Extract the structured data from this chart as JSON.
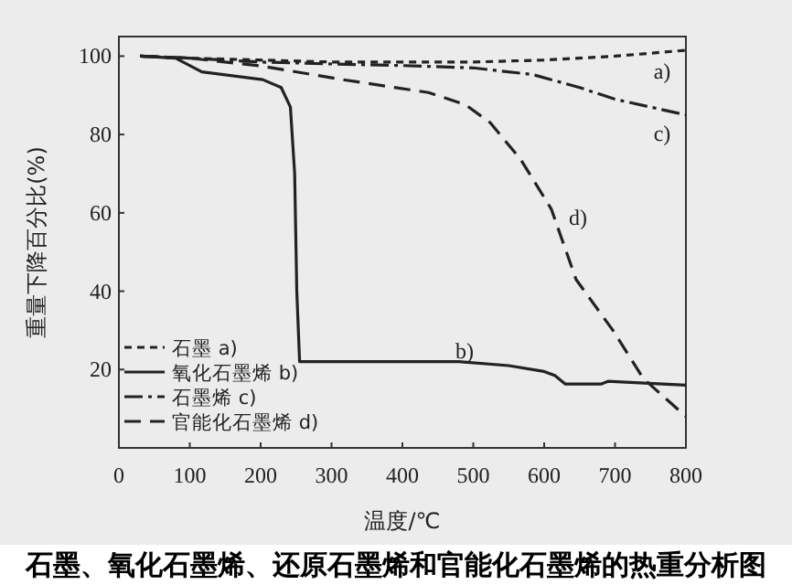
{
  "chart_data": {
    "type": "line",
    "title": "石墨、氧化石墨烯、还原石墨烯和官能化石墨烯的热重分析图",
    "xlabel": "温度/℃",
    "ylabel": "重量下降百分比(%)",
    "xlim": [
      0,
      800
    ],
    "ylim": [
      0,
      105
    ],
    "xticks": [
      0,
      100,
      200,
      300,
      400,
      500,
      600,
      700,
      800
    ],
    "yticks": [
      20,
      40,
      60,
      80,
      100
    ],
    "legend": "bottom left",
    "series": [
      {
        "name": "石墨 a)",
        "color": "#222222",
        "line_style": "dashed",
        "x": [
          30,
          100,
          200,
          300,
          400,
          500,
          600,
          700,
          800
        ],
        "values": [
          100,
          99.5,
          99,
          98.5,
          98.5,
          98.5,
          99,
          100,
          101.5
        ]
      },
      {
        "name": "氧化石墨烯 b)",
        "color": "#222222",
        "line_style": "solid",
        "x": [
          30,
          80,
          117,
          203,
          229,
          242,
          248,
          251,
          255,
          300,
          400,
          480,
          550,
          600,
          615,
          630,
          680,
          690,
          800
        ],
        "values": [
          100,
          99.5,
          96,
          94,
          92,
          87,
          70,
          40,
          22,
          22,
          22,
          22,
          21,
          19.5,
          18.5,
          16.3,
          16.3,
          17,
          16
        ]
      },
      {
        "name": "石墨烯 c)",
        "color": "#222222",
        "line_style": "dashdot",
        "x": [
          30,
          100,
          200,
          300,
          400,
          500,
          584,
          650,
          700,
          750,
          800
        ],
        "values": [
          100,
          99.5,
          98.5,
          98,
          97.6,
          97,
          95.3,
          92,
          89,
          87,
          85
        ]
      },
      {
        "name": "官能化石墨烯 d)",
        "color": "#222222",
        "line_style": "longdash",
        "x": [
          30,
          100,
          200,
          316,
          437,
          489,
          524,
          567,
          610,
          645,
          697,
          740,
          792,
          800
        ],
        "values": [
          100,
          99.5,
          97.5,
          94,
          90.7,
          87.6,
          83,
          73.6,
          61,
          43,
          30,
          17.7,
          9.3,
          8
        ]
      }
    ],
    "annotations": [
      "a)",
      "b)",
      "c)",
      "d)"
    ]
  }
}
